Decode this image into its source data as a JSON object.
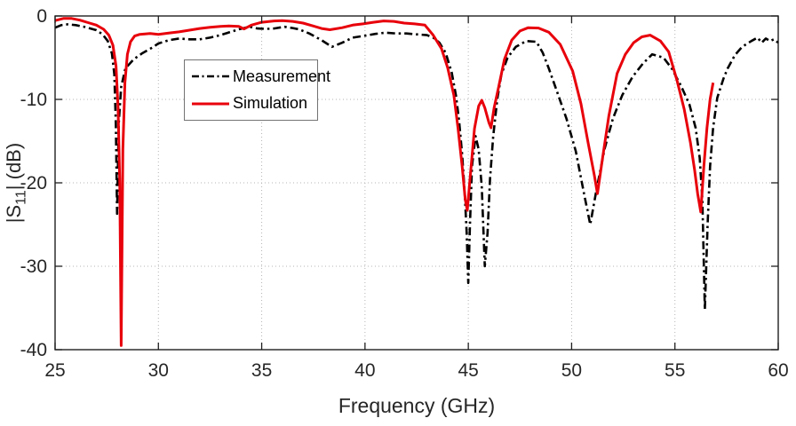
{
  "chart_data": {
    "type": "line",
    "title": "",
    "xlabel": "Frequency (GHz)",
    "ylabel_parts": {
      "prefix": "|S",
      "sub": "11",
      "suffix": "| (dB)"
    },
    "xlim": [
      25,
      60
    ],
    "ylim": [
      -40,
      0
    ],
    "xticks": [
      25,
      30,
      35,
      40,
      45,
      50,
      55,
      60
    ],
    "yticks": [
      0,
      -10,
      -20,
      -30,
      -40
    ],
    "grid": "dotted",
    "legend_position": "upper-left-inside",
    "series": [
      {
        "name": "Measurement",
        "color": "#000000",
        "style": "dash-dot",
        "width": 2.6,
        "points": [
          [
            25.0,
            -1.4
          ],
          [
            25.3,
            -1.1
          ],
          [
            25.6,
            -1.0
          ],
          [
            26.0,
            -1.1
          ],
          [
            26.5,
            -1.35
          ],
          [
            27.0,
            -1.7
          ],
          [
            27.3,
            -2.2
          ],
          [
            27.55,
            -3.0
          ],
          [
            27.75,
            -4.5
          ],
          [
            27.87,
            -7.0
          ],
          [
            27.94,
            -13.0
          ],
          [
            28.0,
            -23.7
          ],
          [
            28.08,
            -13.0
          ],
          [
            28.2,
            -8.5
          ],
          [
            28.4,
            -6.3
          ],
          [
            28.8,
            -5.2
          ],
          [
            29.2,
            -4.5
          ],
          [
            29.7,
            -3.8
          ],
          [
            30.0,
            -3.3
          ],
          [
            30.5,
            -2.9
          ],
          [
            31.0,
            -2.7
          ],
          [
            31.5,
            -2.8
          ],
          [
            32.0,
            -2.8
          ],
          [
            32.5,
            -2.6
          ],
          [
            33.0,
            -2.3
          ],
          [
            33.5,
            -1.9
          ],
          [
            33.9,
            -1.6
          ],
          [
            34.4,
            -1.3
          ],
          [
            34.8,
            -1.5
          ],
          [
            35.2,
            -1.55
          ],
          [
            35.6,
            -1.5
          ],
          [
            36.1,
            -1.3
          ],
          [
            36.5,
            -1.45
          ],
          [
            36.8,
            -1.6
          ],
          [
            37.3,
            -2.1
          ],
          [
            37.9,
            -2.9
          ],
          [
            38.4,
            -3.7
          ],
          [
            38.9,
            -3.2
          ],
          [
            39.4,
            -2.6
          ],
          [
            39.9,
            -2.4
          ],
          [
            40.5,
            -2.15
          ],
          [
            41.0,
            -2.0
          ],
          [
            41.5,
            -2.1
          ],
          [
            42.0,
            -2.1
          ],
          [
            42.5,
            -2.2
          ],
          [
            43.0,
            -2.3
          ],
          [
            43.3,
            -2.6
          ],
          [
            43.6,
            -3.2
          ],
          [
            43.9,
            -4.4
          ],
          [
            44.2,
            -6.8
          ],
          [
            44.4,
            -9.5
          ],
          [
            44.55,
            -12.5
          ],
          [
            44.7,
            -16.6
          ],
          [
            44.82,
            -21.0
          ],
          [
            44.92,
            -26.0
          ],
          [
            45.0,
            -32.0
          ],
          [
            45.08,
            -25.0
          ],
          [
            45.18,
            -18.0
          ],
          [
            45.35,
            -14.4
          ],
          [
            45.5,
            -16.0
          ],
          [
            45.65,
            -20.5
          ],
          [
            45.8,
            -30.0
          ],
          [
            45.93,
            -26.0
          ],
          [
            46.05,
            -19.5
          ],
          [
            46.2,
            -14.5
          ],
          [
            46.4,
            -10.0
          ],
          [
            46.6,
            -7.0
          ],
          [
            46.9,
            -5.0
          ],
          [
            47.3,
            -3.7
          ],
          [
            47.8,
            -3.0
          ],
          [
            48.3,
            -3.1
          ],
          [
            48.6,
            -4.4
          ],
          [
            48.9,
            -6.3
          ],
          [
            49.3,
            -9.1
          ],
          [
            49.75,
            -12.3
          ],
          [
            50.2,
            -16.2
          ],
          [
            50.6,
            -21.3
          ],
          [
            50.9,
            -25.0
          ],
          [
            51.2,
            -20.9
          ],
          [
            51.6,
            -15.9
          ],
          [
            52.0,
            -12.3
          ],
          [
            52.45,
            -9.5
          ],
          [
            52.95,
            -7.3
          ],
          [
            53.45,
            -5.7
          ],
          [
            53.9,
            -4.6
          ],
          [
            54.45,
            -5.0
          ],
          [
            54.85,
            -6.3
          ],
          [
            55.3,
            -8.4
          ],
          [
            55.7,
            -10.6
          ],
          [
            56.0,
            -13.4
          ],
          [
            56.2,
            -17.0
          ],
          [
            56.33,
            -22.0
          ],
          [
            56.45,
            -35.2
          ],
          [
            56.58,
            -25.0
          ],
          [
            56.7,
            -18.0
          ],
          [
            56.85,
            -13.4
          ],
          [
            57.05,
            -9.8
          ],
          [
            57.35,
            -7.5
          ],
          [
            57.55,
            -6.3
          ],
          [
            57.9,
            -4.7
          ],
          [
            58.25,
            -3.7
          ],
          [
            58.7,
            -3.0
          ],
          [
            59.0,
            -2.6
          ],
          [
            59.2,
            -3.2
          ],
          [
            59.4,
            -2.7
          ],
          [
            59.6,
            -3.0
          ],
          [
            59.8,
            -2.8
          ],
          [
            60.0,
            -3.2
          ]
        ]
      },
      {
        "name": "Simulation",
        "color": "#e8000b",
        "style": "solid",
        "width": 3,
        "points": [
          [
            25.0,
            -0.55
          ],
          [
            25.4,
            -0.3
          ],
          [
            25.8,
            -0.3
          ],
          [
            26.2,
            -0.5
          ],
          [
            26.6,
            -0.8
          ],
          [
            27.0,
            -1.1
          ],
          [
            27.35,
            -1.6
          ],
          [
            27.6,
            -2.3
          ],
          [
            27.8,
            -3.5
          ],
          [
            27.95,
            -6.0
          ],
          [
            28.05,
            -11.0
          ],
          [
            28.13,
            -20.0
          ],
          [
            28.2,
            -39.5
          ],
          [
            28.28,
            -16.0
          ],
          [
            28.38,
            -8.0
          ],
          [
            28.5,
            -4.6
          ],
          [
            28.65,
            -3.1
          ],
          [
            28.85,
            -2.4
          ],
          [
            29.1,
            -2.2
          ],
          [
            29.6,
            -2.1
          ],
          [
            30.0,
            -2.2
          ],
          [
            30.5,
            -2.05
          ],
          [
            31.0,
            -1.9
          ],
          [
            31.5,
            -1.7
          ],
          [
            32.0,
            -1.5
          ],
          [
            32.5,
            -1.35
          ],
          [
            33.0,
            -1.25
          ],
          [
            33.4,
            -1.2
          ],
          [
            33.9,
            -1.25
          ],
          [
            34.15,
            -1.55
          ],
          [
            34.5,
            -1.1
          ],
          [
            35.0,
            -0.75
          ],
          [
            35.6,
            -0.6
          ],
          [
            36.0,
            -0.55
          ],
          [
            36.5,
            -0.65
          ],
          [
            37.0,
            -0.85
          ],
          [
            37.5,
            -1.2
          ],
          [
            37.9,
            -1.5
          ],
          [
            38.3,
            -1.65
          ],
          [
            38.9,
            -1.4
          ],
          [
            39.4,
            -1.1
          ],
          [
            39.9,
            -0.95
          ],
          [
            40.4,
            -0.75
          ],
          [
            40.9,
            -0.6
          ],
          [
            41.4,
            -0.65
          ],
          [
            41.9,
            -0.85
          ],
          [
            42.4,
            -0.95
          ],
          [
            42.9,
            -1.1
          ],
          [
            43.3,
            -2.3
          ],
          [
            43.7,
            -3.9
          ],
          [
            44.0,
            -6.2
          ],
          [
            44.3,
            -9.5
          ],
          [
            44.5,
            -13.4
          ],
          [
            44.7,
            -18.0
          ],
          [
            44.85,
            -22.0
          ],
          [
            44.95,
            -23.3
          ],
          [
            45.1,
            -19.0
          ],
          [
            45.3,
            -13.5
          ],
          [
            45.5,
            -10.8
          ],
          [
            45.65,
            -10.1
          ],
          [
            45.8,
            -11.0
          ],
          [
            46.0,
            -12.8
          ],
          [
            46.1,
            -13.4
          ],
          [
            46.25,
            -11.0
          ],
          [
            46.45,
            -8.7
          ],
          [
            46.75,
            -5.2
          ],
          [
            47.1,
            -2.9
          ],
          [
            47.5,
            -1.8
          ],
          [
            47.9,
            -1.4
          ],
          [
            48.4,
            -1.45
          ],
          [
            48.9,
            -1.95
          ],
          [
            49.45,
            -3.4
          ],
          [
            50.05,
            -6.6
          ],
          [
            50.45,
            -10.5
          ],
          [
            50.8,
            -15.2
          ],
          [
            51.1,
            -19.1
          ],
          [
            51.25,
            -21.3
          ],
          [
            51.5,
            -17.0
          ],
          [
            51.8,
            -12.0
          ],
          [
            52.2,
            -6.9
          ],
          [
            52.6,
            -4.6
          ],
          [
            53.0,
            -3.2
          ],
          [
            53.4,
            -2.5
          ],
          [
            53.8,
            -2.3
          ],
          [
            54.3,
            -3.0
          ],
          [
            54.7,
            -4.3
          ],
          [
            55.1,
            -7.7
          ],
          [
            55.45,
            -11.2
          ],
          [
            55.75,
            -15.2
          ],
          [
            55.95,
            -18.4
          ],
          [
            56.1,
            -21.3
          ],
          [
            56.25,
            -23.5
          ],
          [
            56.4,
            -18.0
          ],
          [
            56.55,
            -13.4
          ],
          [
            56.7,
            -10.0
          ],
          [
            56.85,
            -8.0
          ]
        ]
      }
    ]
  }
}
